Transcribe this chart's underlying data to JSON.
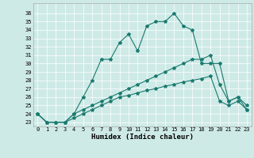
{
  "xlabel": "Humidex (Indice chaleur)",
  "background_color": "#ceeae7",
  "line_color": "#1a7a6e",
  "xlim": [
    -0.5,
    23.5
  ],
  "ylim": [
    22.5,
    37.2
  ],
  "xticks": [
    0,
    1,
    2,
    3,
    4,
    5,
    6,
    7,
    8,
    9,
    10,
    11,
    12,
    13,
    14,
    15,
    16,
    17,
    18,
    19,
    20,
    21,
    22,
    23
  ],
  "yticks": [
    23,
    24,
    25,
    26,
    27,
    28,
    29,
    30,
    31,
    32,
    33,
    34,
    35,
    36
  ],
  "series1_y": [
    24.0,
    23.0,
    23.0,
    23.0,
    24.0,
    26.0,
    28.0,
    30.5,
    30.5,
    32.5,
    33.5,
    31.5,
    34.5,
    35.0,
    35.0,
    36.0,
    34.5,
    34.0,
    30.0,
    30.0,
    30.0,
    25.5,
    26.0,
    25.0
  ],
  "series2_y": [
    24.0,
    23.0,
    23.0,
    23.0,
    24.0,
    24.5,
    25.0,
    25.5,
    26.0,
    26.5,
    27.0,
    27.5,
    28.0,
    28.5,
    29.0,
    29.5,
    30.0,
    30.5,
    30.5,
    31.0,
    27.5,
    25.5,
    26.0,
    24.5
  ],
  "series3_y": [
    24.0,
    23.0,
    23.0,
    23.0,
    23.5,
    24.0,
    24.5,
    25.0,
    25.5,
    26.0,
    26.2,
    26.5,
    26.8,
    27.0,
    27.3,
    27.5,
    27.8,
    28.0,
    28.2,
    28.5,
    25.5,
    25.0,
    25.5,
    24.5
  ],
  "tick_fontsize": 5.0,
  "xlabel_fontsize": 6.5,
  "marker_size": 3.0,
  "linewidth": 0.8
}
